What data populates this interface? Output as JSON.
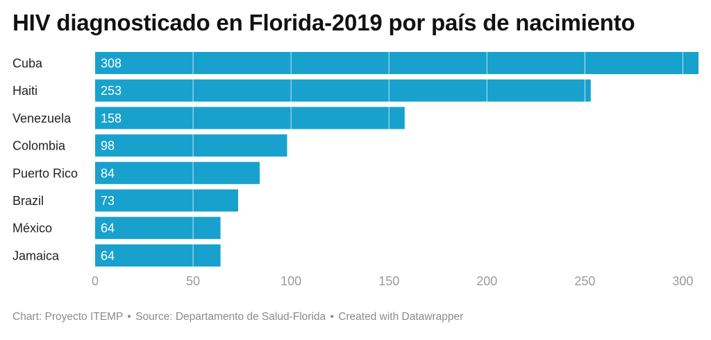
{
  "title": "HIV diagnosticado en Florida-2019 por país de nacimiento",
  "footer": {
    "chart_credit": "Chart: Proyecto ITEMP",
    "source": "Source: Departamento de Salud-Florida",
    "created_with": "Created with Datawrapper",
    "separator": "•"
  },
  "colors": {
    "bar": "#18a1cd",
    "bar_label": "#ffffff",
    "category_label": "#222222",
    "tick_label": "#9a9a9a",
    "grid": "#ffffff"
  },
  "chart_data": {
    "type": "bar",
    "orientation": "horizontal",
    "title": "HIV diagnosticado en Florida-2019 por país de nacimiento",
    "categories": [
      "Cuba",
      "Haiti",
      "Venezuela",
      "Colombia",
      "Puerto Rico",
      "Brazil",
      "México",
      "Jamaica"
    ],
    "values": [
      308,
      253,
      158,
      98,
      84,
      73,
      64,
      64
    ],
    "xlim": [
      0,
      308
    ],
    "xticks": [
      0,
      50,
      100,
      150,
      200,
      250,
      300
    ],
    "grid": true,
    "data_labels": true
  }
}
